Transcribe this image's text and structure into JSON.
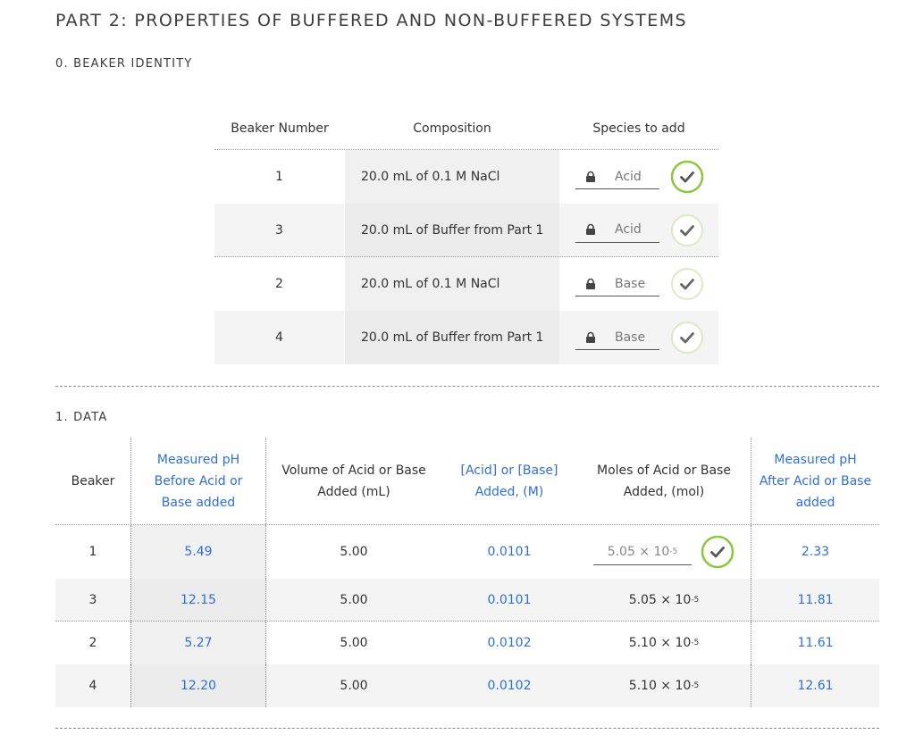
{
  "page": {
    "title": "PART 2: PROPERTIES OF BUFFERED AND NON-BUFFERED SYSTEMS"
  },
  "identity": {
    "section_label": "0. BEAKER IDENTITY",
    "headers": {
      "beaker_number": "Beaker Number",
      "composition": "Composition",
      "species": "Species to add"
    },
    "rows": [
      {
        "beaker": "1",
        "composition": "20.0 mL of 0.1 M NaCl",
        "species": "Acid",
        "check_status": "correct"
      },
      {
        "beaker": "3",
        "composition": "20.0 mL of Buffer from Part 1",
        "species": "Acid",
        "check_status": "pending"
      },
      {
        "beaker": "2",
        "composition": "20.0 mL of 0.1 M NaCl",
        "species": "Base",
        "check_status": "pending"
      },
      {
        "beaker": "4",
        "composition": "20.0 mL of Buffer from Part 1",
        "species": "Base",
        "check_status": "pending"
      }
    ]
  },
  "data": {
    "section_label": "1. DATA",
    "headers": {
      "beaker": "Beaker",
      "ph_before": "Measured pH Before Acid or Base added",
      "volume": "Volume of Acid or Base Added (mL)",
      "concentration": "[Acid] or [Base] Added, (M)",
      "moles": "Moles of Acid or Base Added, (mol)",
      "ph_after": "Measured pH After Acid or Base added"
    },
    "rows": [
      {
        "beaker": "1",
        "ph_before": "5.49",
        "volume": "5.00",
        "concentration": "0.0101",
        "moles_mantissa": "5.05 × 10",
        "moles_exp": "-5",
        "ph_after": "2.33"
      },
      {
        "beaker": "3",
        "ph_before": "12.15",
        "volume": "5.00",
        "concentration": "0.0101",
        "moles_mantissa": "5.05 × 10",
        "moles_exp": "-5",
        "ph_after": "11.81"
      },
      {
        "beaker": "2",
        "ph_before": "5.27",
        "volume": "5.00",
        "concentration": "0.0102",
        "moles_mantissa": "5.10 × 10",
        "moles_exp": "-5",
        "ph_after": "11.61"
      },
      {
        "beaker": "4",
        "ph_before": "12.20",
        "volume": "5.00",
        "concentration": "0.0102",
        "moles_mantissa": "5.10 × 10",
        "moles_exp": "-5",
        "ph_after": "12.61"
      }
    ]
  },
  "colors": {
    "accent_blue": "#2f6fd6",
    "check_green": "#8cc63f",
    "check_pending": "#cfe6b3"
  },
  "icons": {
    "lock": "lock-icon",
    "check": "check-circle-icon"
  }
}
